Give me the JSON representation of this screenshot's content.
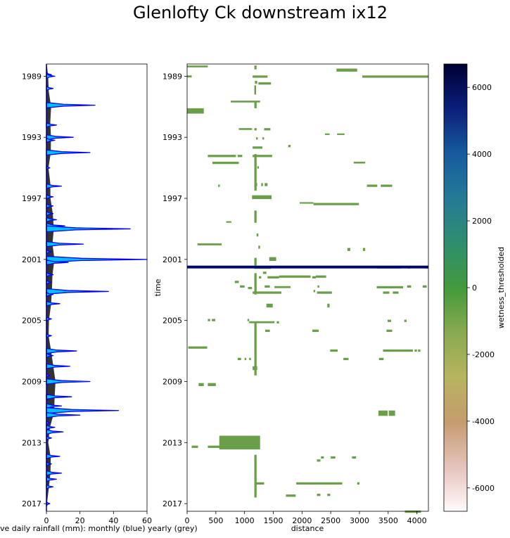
{
  "figure": {
    "title": "Glenlofty Ck downstream ix12"
  },
  "chart_data": [
    {
      "type": "area",
      "name": "rainfall",
      "orientation": "vertical",
      "xlabel": "ave daily rainfall (mm): monthly (blue) yearly (grey)",
      "ylabel": "",
      "xlim": [
        0,
        60
      ],
      "ylim": [
        1988.2,
        2017.5
      ],
      "y_inverted": true,
      "xticks": [
        "0",
        "20",
        "40",
        "60"
      ],
      "yticks": [
        1989,
        1993,
        1997,
        2001,
        2005,
        2009,
        2013,
        2017
      ],
      "colors": {
        "monthly_fill": "#00bfff",
        "monthly_line": "#0000ff",
        "yearly_fill": "#333333"
      },
      "yearly_series": {
        "name": "yearly",
        "t": [
          1988.3,
          1989,
          1990,
          1991,
          1992,
          1993,
          1994,
          1995,
          1996,
          1997,
          1998,
          1999,
          2000,
          2001,
          2002,
          2003,
          2004,
          2005,
          2006,
          2007,
          2008,
          2009,
          2010,
          2011,
          2012,
          2013,
          2014,
          2015,
          2016,
          2017
        ],
        "values": [
          0.3,
          1.0,
          1.4,
          2.8,
          2.3,
          2.7,
          2.6,
          1.2,
          2.3,
          2.4,
          3.8,
          4.4,
          3.6,
          4.8,
          3.6,
          3.3,
          2.7,
          1.5,
          1.3,
          2.8,
          4.1,
          5.4,
          4.9,
          4.6,
          2.1,
          1.1,
          2.6,
          2.4,
          1.4,
          0.3
        ]
      },
      "monthly_series": {
        "name": "monthly",
        "spikes": [
          {
            "t": 1988.9,
            "v": 3
          },
          {
            "t": 1989.0,
            "v": 5
          },
          {
            "t": 1989.8,
            "v": 4
          },
          {
            "t": 1990.9,
            "v": 29
          },
          {
            "t": 1992.2,
            "v": 6
          },
          {
            "t": 1993.0,
            "v": 16
          },
          {
            "t": 1993.2,
            "v": 5
          },
          {
            "t": 1994.0,
            "v": 26
          },
          {
            "t": 1995.0,
            "v": 2
          },
          {
            "t": 1996.2,
            "v": 9
          },
          {
            "t": 1996.9,
            "v": 4
          },
          {
            "t": 1997.5,
            "v": 4
          },
          {
            "t": 1998.0,
            "v": 4
          },
          {
            "t": 1998.4,
            "v": 6
          },
          {
            "t": 1998.8,
            "v": 11
          },
          {
            "t": 1999.0,
            "v": 50
          },
          {
            "t": 2000.0,
            "v": 22
          },
          {
            "t": 2000.5,
            "v": 3
          },
          {
            "t": 2001.0,
            "v": 60
          },
          {
            "t": 2001.2,
            "v": 13
          },
          {
            "t": 2002.0,
            "v": 4
          },
          {
            "t": 2002.5,
            "v": 3
          },
          {
            "t": 2003.1,
            "v": 37
          },
          {
            "t": 2003.3,
            "v": 4
          },
          {
            "t": 2003.9,
            "v": 8
          },
          {
            "t": 2004.9,
            "v": 3
          },
          {
            "t": 2006.0,
            "v": 3
          },
          {
            "t": 2007.0,
            "v": 18
          },
          {
            "t": 2007.3,
            "v": 4
          },
          {
            "t": 2008.0,
            "v": 14
          },
          {
            "t": 2008.6,
            "v": 2
          },
          {
            "t": 2009.0,
            "v": 26
          },
          {
            "t": 2010.0,
            "v": 15
          },
          {
            "t": 2010.6,
            "v": 9
          },
          {
            "t": 2010.9,
            "v": 43
          },
          {
            "t": 2011.2,
            "v": 20
          },
          {
            "t": 2011.7,
            "v": 2
          },
          {
            "t": 2012.0,
            "v": 5
          },
          {
            "t": 2012.3,
            "v": 10
          },
          {
            "t": 2012.7,
            "v": 3
          },
          {
            "t": 2013.9,
            "v": 8
          },
          {
            "t": 2014.4,
            "v": 3
          },
          {
            "t": 2015.0,
            "v": 9
          },
          {
            "t": 2015.4,
            "v": 6
          },
          {
            "t": 2015.9,
            "v": 4
          },
          {
            "t": 2017.0,
            "v": 2
          }
        ]
      }
    },
    {
      "type": "heatmap",
      "name": "wetness",
      "xlabel": "distance",
      "ylabel": "time",
      "xlim": [
        0,
        4200
      ],
      "ylim": [
        1988.2,
        2017.5
      ],
      "y_inverted": true,
      "xticks": [
        "0",
        "500",
        "1000",
        "1500",
        "2000",
        "2500",
        "3000",
        "3500",
        "4000"
      ],
      "yticks": [
        1989,
        1993,
        1997,
        2001,
        2005,
        2009,
        2013,
        2017
      ],
      "cell_color": "#6b9e4a",
      "line_color": "#000a66",
      "cells": [
        [
          0,
          360,
          1988.3,
          1988.42
        ],
        [
          2600,
          2960,
          1988.5,
          1988.7
        ],
        [
          1170,
          1210,
          1988.3,
          1988.55
        ],
        [
          1140,
          1400,
          1988.95,
          1989.1
        ],
        [
          1180,
          1220,
          1989.3,
          1989.5
        ],
        [
          1280,
          1460,
          1989.4,
          1989.55
        ],
        [
          1240,
          1290,
          1989.4,
          1989.55
        ],
        [
          1170,
          1200,
          1989.6,
          1990.2
        ],
        [
          0,
          80,
          1988.95,
          1989.08
        ],
        [
          3050,
          4200,
          1988.95,
          1989.1
        ],
        [
          760,
          1270,
          1990.6,
          1990.72
        ],
        [
          1170,
          1210,
          1990.7,
          1991.1
        ],
        [
          0,
          290,
          1991.1,
          1991.45
        ],
        [
          900,
          1130,
          1992.4,
          1992.52
        ],
        [
          1170,
          1210,
          1992.4,
          1992.55
        ],
        [
          1340,
          1450,
          1992.4,
          1992.55
        ],
        [
          1200,
          1230,
          1993.0,
          1993.15
        ],
        [
          1310,
          1340,
          1993.0,
          1993.15
        ],
        [
          1140,
          1310,
          1993.6,
          1993.75
        ],
        [
          1760,
          1800,
          1993.5,
          1993.65
        ],
        [
          2400,
          2480,
          1992.75,
          1992.85
        ],
        [
          2610,
          2740,
          1992.75,
          1992.85
        ],
        [
          360,
          850,
          1994.15,
          1994.3
        ],
        [
          880,
          960,
          1994.15,
          1994.3
        ],
        [
          1140,
          1480,
          1994.15,
          1994.3
        ],
        [
          440,
          900,
          1994.6,
          1994.75
        ],
        [
          1170,
          1210,
          1994.1,
          1996.5
        ],
        [
          1220,
          1250,
          1994.9,
          1995.05
        ],
        [
          2900,
          3100,
          1994.6,
          1994.72
        ],
        [
          540,
          570,
          1996.1,
          1996.25
        ],
        [
          1190,
          1220,
          1996.0,
          1996.2
        ],
        [
          1290,
          1320,
          1996.0,
          1996.2
        ],
        [
          1350,
          1400,
          1996.0,
          1996.2
        ],
        [
          3130,
          3310,
          1996.1,
          1996.25
        ],
        [
          3370,
          3570,
          1996.1,
          1996.25
        ],
        [
          1130,
          1470,
          1996.8,
          1997.05
        ],
        [
          1960,
          2200,
          1997.25,
          1997.35
        ],
        [
          2200,
          2990,
          1997.3,
          1997.45
        ],
        [
          1170,
          1210,
          1997.8,
          1998.6
        ],
        [
          680,
          770,
          1998.5,
          1998.6
        ],
        [
          1210,
          1240,
          1999.3,
          1999.5
        ],
        [
          1240,
          1270,
          2000.1,
          2000.3
        ],
        [
          180,
          600,
          1999.95,
          2000.08
        ],
        [
          2790,
          2840,
          2000.25,
          2000.45
        ],
        [
          3060,
          3100,
          2000.25,
          2000.45
        ],
        [
          1430,
          1550,
          2000.85,
          2001.1
        ],
        [
          1170,
          1210,
          2000.9,
          2001.4
        ],
        [
          1170,
          1460,
          2001.5,
          2001.62
        ],
        [
          3300,
          3720,
          2001.5,
          2001.6
        ],
        [
          3840,
          3880,
          2001.5,
          2001.6
        ],
        [
          4140,
          4200,
          2001.5,
          2001.6
        ],
        [
          1320,
          1380,
          2001.8,
          2001.95
        ],
        [
          1250,
          1290,
          2002.1,
          2002.25
        ],
        [
          1400,
          1600,
          2002.1,
          2002.25
        ],
        [
          1600,
          2150,
          2002.05,
          2002.2
        ],
        [
          2180,
          2240,
          2002.1,
          2002.25
        ],
        [
          2240,
          2420,
          2002.05,
          2002.2
        ],
        [
          830,
          900,
          2002.4,
          2002.55
        ],
        [
          920,
          1000,
          2002.7,
          2002.85
        ],
        [
          1060,
          1130,
          2002.8,
          2002.95
        ],
        [
          1350,
          1440,
          2002.7,
          2002.85
        ],
        [
          1520,
          1800,
          2002.75,
          2002.88
        ],
        [
          2270,
          2300,
          2002.7,
          2002.85
        ],
        [
          1170,
          1210,
          2001.9,
          2003.3
        ],
        [
          1140,
          1640,
          2003.1,
          2003.25
        ],
        [
          2200,
          2230,
          2003.0,
          2003.15
        ],
        [
          2260,
          2520,
          2003.1,
          2003.25
        ],
        [
          3300,
          3760,
          2002.75,
          2002.9
        ],
        [
          3830,
          3900,
          2002.7,
          2002.85
        ],
        [
          4100,
          4170,
          2002.7,
          2002.85
        ],
        [
          3410,
          3520,
          2003.1,
          2003.25
        ],
        [
          3580,
          3680,
          2003.1,
          2003.25
        ],
        [
          1380,
          1490,
          2003.9,
          2004.15
        ],
        [
          2440,
          2480,
          2003.9,
          2004.15
        ],
        [
          360,
          400,
          2004.9,
          2005.05
        ],
        [
          430,
          490,
          2004.9,
          2005.05
        ],
        [
          1050,
          1080,
          2004.9,
          2005.05
        ],
        [
          1080,
          1520,
          2005.05,
          2005.18
        ],
        [
          1560,
          1600,
          2005.05,
          2005.2
        ],
        [
          3490,
          3550,
          2004.95,
          2005.1
        ],
        [
          3780,
          3820,
          2004.95,
          2005.1
        ],
        [
          1360,
          1440,
          2005.6,
          2005.75
        ],
        [
          2180,
          2290,
          2005.6,
          2005.75
        ],
        [
          3470,
          3570,
          2005.6,
          2005.75
        ],
        [
          1170,
          1210,
          2005.1,
          2008.6
        ],
        [
          20,
          350,
          2006.7,
          2006.85
        ],
        [
          2490,
          2620,
          2006.9,
          2007.05
        ],
        [
          3410,
          3930,
          2006.9,
          2007.05
        ],
        [
          3960,
          4000,
          2006.9,
          2007.05
        ],
        [
          4020,
          4060,
          2006.9,
          2007.05
        ],
        [
          880,
          940,
          2007.45,
          2007.6
        ],
        [
          1000,
          1030,
          2007.45,
          2007.6
        ],
        [
          1080,
          1110,
          2007.45,
          2007.6
        ],
        [
          2720,
          2810,
          2007.45,
          2007.6
        ],
        [
          3340,
          3420,
          2007.45,
          2007.6
        ],
        [
          1140,
          1220,
          2008.0,
          2008.25
        ],
        [
          200,
          290,
          2009.1,
          2009.3
        ],
        [
          360,
          500,
          2009.1,
          2009.3
        ],
        [
          3330,
          3490,
          2010.9,
          2011.25
        ],
        [
          3510,
          3620,
          2010.9,
          2011.25
        ],
        [
          560,
          1270,
          2012.55,
          2013.45
        ],
        [
          80,
          190,
          2013.2,
          2013.35
        ],
        [
          360,
          780,
          2013.2,
          2013.35
        ],
        [
          2330,
          2380,
          2013.9,
          2014.05
        ],
        [
          2500,
          2580,
          2013.9,
          2014.05
        ],
        [
          2870,
          2940,
          2013.9,
          2014.05
        ],
        [
          2260,
          2320,
          2014.1,
          2014.25
        ],
        [
          1170,
          1210,
          2013.8,
          2016.6
        ],
        [
          1180,
          1340,
          2015.6,
          2015.75
        ],
        [
          1900,
          2700,
          2015.6,
          2015.75
        ],
        [
          2960,
          3000,
          2015.6,
          2015.75
        ],
        [
          1720,
          1890,
          2016.4,
          2016.55
        ],
        [
          2260,
          2320,
          2016.35,
          2016.5
        ],
        [
          2440,
          2490,
          2016.35,
          2016.5
        ],
        [
          3790,
          4070,
          2017.45,
          2017.6
        ]
      ],
      "lines": [
        {
          "t": 2001.5,
          "x0": 0,
          "x1": 4200
        }
      ]
    },
    {
      "type": "colorbar",
      "name": "colorbar",
      "label": "wetness_thresholded",
      "vlim": [
        -6700,
        6700
      ],
      "ticks": [
        "-6000",
        "-4000",
        "-2000",
        "0",
        "2000",
        "4000",
        "6000"
      ],
      "colorstops": [
        "#fffafa",
        "#e5c2bc",
        "#c59c6e",
        "#b7b45e",
        "#88aa50",
        "#429a3c",
        "#2f8e6e",
        "#257a96",
        "#165b9e",
        "#0b1e7a",
        "#000033"
      ]
    }
  ]
}
